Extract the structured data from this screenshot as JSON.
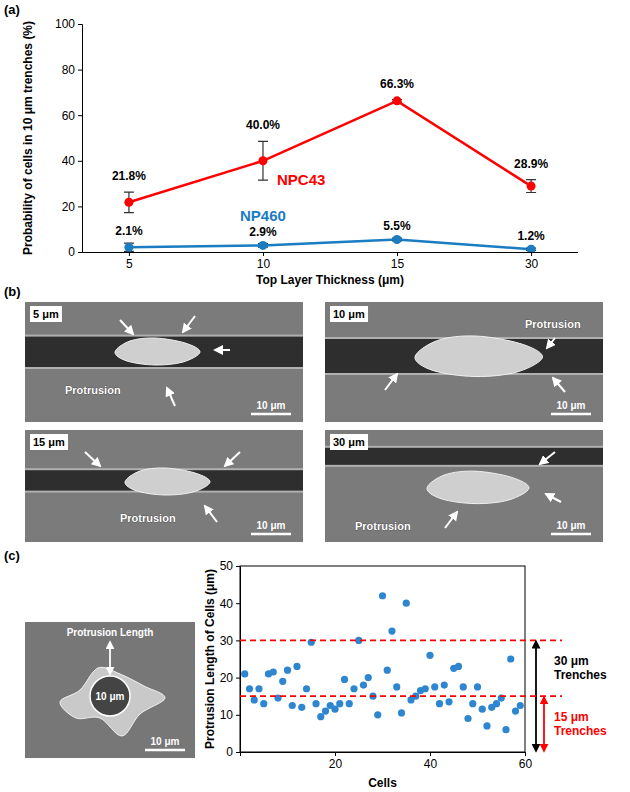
{
  "panel_labels": [
    "(a)",
    "(b)",
    "(c)"
  ],
  "chart_data": [
    {
      "type": "line",
      "x_label": "Top Layer Thickness (μm)",
      "y_label": "Probability of cells in 10 μm trenches (%)",
      "categories": [
        "5",
        "10",
        "15",
        "30"
      ],
      "series": [
        {
          "name": "NPC43",
          "color": "#ff0000",
          "marker": "circle",
          "values": [
            21.8,
            40.0,
            66.3,
            28.9
          ],
          "value_labels": [
            "21.8%",
            "40.0%",
            "66.3%",
            "28.9%"
          ],
          "errors": [
            4.5,
            8.5,
            0.5,
            2.8
          ]
        },
        {
          "name": "NP460",
          "color": "#1a7cc1",
          "marker": "circle",
          "values": [
            2.1,
            2.9,
            5.5,
            1.2
          ],
          "value_labels": [
            "2.1%",
            "2.9%",
            "5.5%",
            "1.2%"
          ],
          "errors": [
            1.8,
            0.8,
            0.6,
            0.5
          ]
        }
      ],
      "ylim": [
        0,
        100
      ],
      "yticks": [
        0,
        20,
        40,
        60,
        80,
        100
      ],
      "data_labels": true
    },
    {
      "type": "scatter",
      "x_label": "Cells",
      "y_label": "Protrusion Length of Cells (μm)",
      "x": [
        1,
        2,
        3,
        4,
        5,
        6,
        7,
        8,
        9,
        10,
        11,
        12,
        13,
        14,
        15,
        16,
        17,
        18,
        19,
        20,
        21,
        22,
        23,
        24,
        25,
        26,
        27,
        28,
        29,
        30,
        31,
        32,
        33,
        34,
        35,
        36,
        37,
        38,
        39,
        40,
        41,
        42,
        43,
        44,
        45,
        46,
        47,
        48,
        49,
        50,
        51,
        52,
        53,
        54,
        55,
        56,
        57,
        58,
        59
      ],
      "values": [
        21,
        17,
        14,
        17,
        13,
        21,
        21.5,
        14.5,
        19,
        22,
        12.5,
        23,
        12,
        17,
        29.5,
        13,
        9.5,
        11,
        12.5,
        11.5,
        13,
        19.5,
        13,
        17,
        30,
        18,
        20,
        15,
        10,
        42,
        22,
        32.5,
        17.5,
        10.5,
        40,
        14,
        15,
        16.5,
        17,
        26,
        17.5,
        13,
        18,
        13.5,
        22.5,
        23,
        17.5,
        9,
        13,
        17.5,
        11.5,
        7,
        12,
        13,
        14.5,
        6,
        25,
        11,
        12.5
      ],
      "color": "#2e86d0",
      "marker": "circle",
      "xlim": [
        0,
        60
      ],
      "xticks": [
        20,
        40,
        60
      ],
      "ylim": [
        0,
        50
      ],
      "yticks": [
        0,
        10,
        20,
        30,
        40,
        50
      ],
      "annotations": [
        {
          "text": "30 μm Trenches",
          "value": 30,
          "color": "#000000"
        },
        {
          "text": "15 μm Trenches",
          "value": 15,
          "color": "#ff0000"
        }
      ]
    }
  ],
  "images": {
    "b": [
      {
        "label": "5 μm",
        "annotation": "Protrusion",
        "scale_bar": "10 μm"
      },
      {
        "label": "10 μm",
        "annotation": "Protrusion",
        "scale_bar": "10 μm"
      },
      {
        "label": "15 μm",
        "annotation": "Protrusion",
        "scale_bar": "10 μm"
      },
      {
        "label": "30 μm",
        "annotation": "Protrusion",
        "scale_bar": "10 μm"
      }
    ],
    "c": {
      "annotations": [
        "Protrusion Length",
        "10 μm"
      ],
      "scale_bar": "10 μm"
    }
  }
}
